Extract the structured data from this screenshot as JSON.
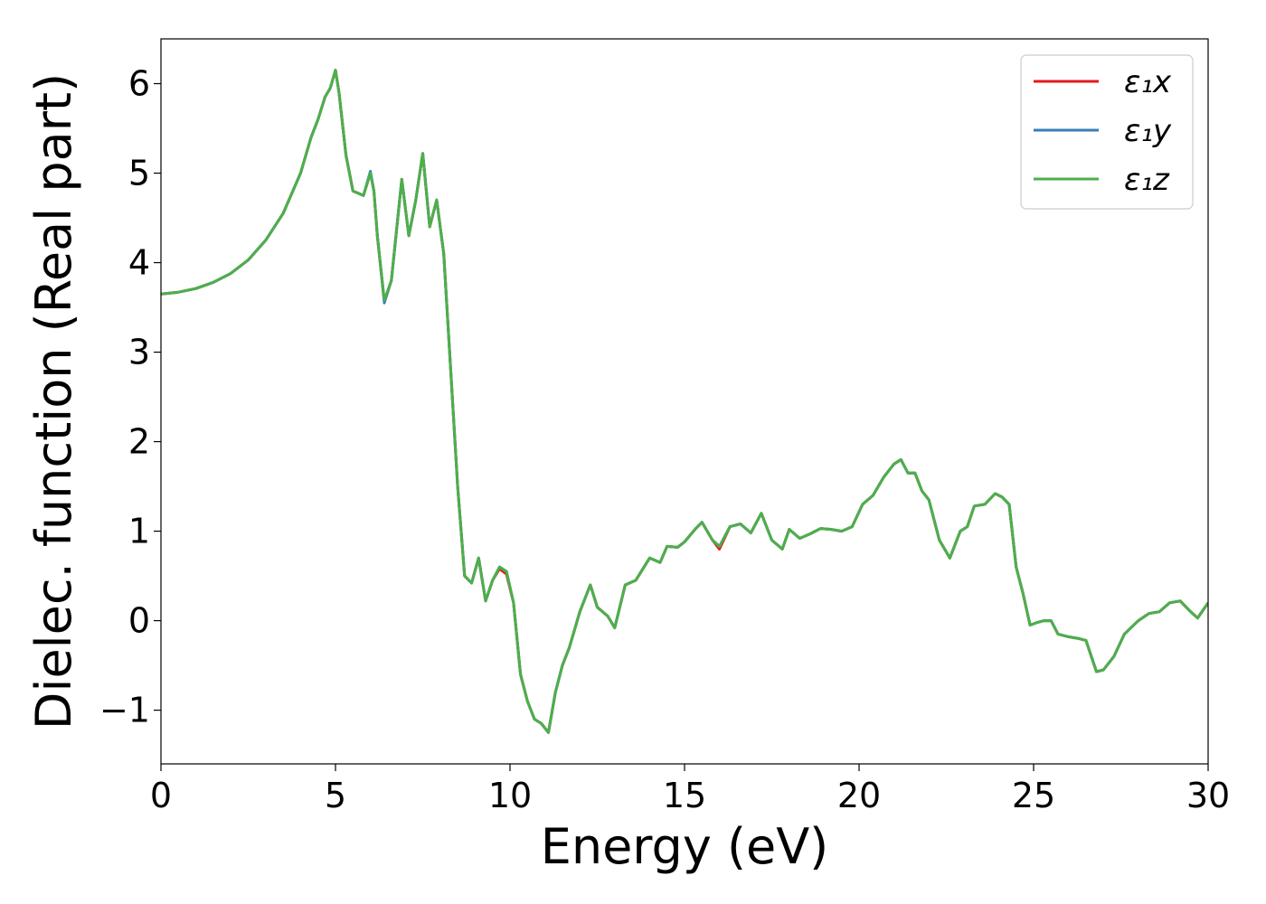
{
  "chart_data": {
    "type": "line",
    "title": "",
    "xlabel": "Energy (eV)",
    "ylabel": "Dielec. function (Real part)",
    "xlim": [
      0,
      30
    ],
    "ylim": [
      -1.6,
      6.5
    ],
    "xticks": [
      0,
      5,
      10,
      15,
      20,
      25,
      30
    ],
    "xtick_labels": [
      "0",
      "5",
      "10",
      "15",
      "20",
      "25",
      "30"
    ],
    "yticks": [
      -1,
      0,
      1,
      2,
      3,
      4,
      5,
      6
    ],
    "ytick_labels": [
      "−1",
      "0",
      "1",
      "2",
      "3",
      "4",
      "5",
      "6"
    ],
    "grid": false,
    "legend_position": "top-right",
    "x": [
      0,
      0.5,
      1,
      1.5,
      2,
      2.5,
      3,
      3.5,
      4,
      4.3,
      4.5,
      4.7,
      4.85,
      5.0,
      5.1,
      5.3,
      5.5,
      5.8,
      6.0,
      6.1,
      6.2,
      6.4,
      6.6,
      6.9,
      7.1,
      7.3,
      7.5,
      7.7,
      7.9,
      8.1,
      8.3,
      8.5,
      8.7,
      8.9,
      9.1,
      9.3,
      9.5,
      9.7,
      9.9,
      10.1,
      10.3,
      10.5,
      10.7,
      10.9,
      11.1,
      11.3,
      11.5,
      11.7,
      12.0,
      12.3,
      12.5,
      12.8,
      13.0,
      13.3,
      13.6,
      14.0,
      14.3,
      14.5,
      14.8,
      15.0,
      15.3,
      15.5,
      15.8,
      16.0,
      16.3,
      16.6,
      16.9,
      17.2,
      17.5,
      17.8,
      18.0,
      18.3,
      18.6,
      18.9,
      19.2,
      19.5,
      19.8,
      20.1,
      20.4,
      20.7,
      21.0,
      21.2,
      21.4,
      21.6,
      21.8,
      22.0,
      22.3,
      22.6,
      22.9,
      23.1,
      23.3,
      23.6,
      23.9,
      24.1,
      24.3,
      24.5,
      24.7,
      24.9,
      25.1,
      25.3,
      25.5,
      25.7,
      26.0,
      26.3,
      26.5,
      26.8,
      27.0,
      27.3,
      27.6,
      28.0,
      28.3,
      28.6,
      28.9,
      29.2,
      29.5,
      29.7,
      30.0
    ],
    "series": [
      {
        "name": "ε₁x",
        "color": "#e41a1c",
        "values": [
          3.65,
          3.67,
          3.71,
          3.78,
          3.88,
          4.03,
          4.25,
          4.55,
          5.0,
          5.4,
          5.6,
          5.85,
          5.95,
          6.15,
          5.9,
          5.2,
          4.8,
          4.75,
          5.0,
          4.8,
          4.3,
          3.57,
          3.8,
          4.93,
          4.3,
          4.7,
          5.22,
          4.4,
          4.7,
          4.1,
          2.8,
          1.5,
          0.5,
          0.42,
          0.7,
          0.22,
          0.45,
          0.58,
          0.52,
          0.2,
          -0.6,
          -0.9,
          -1.1,
          -1.15,
          -1.25,
          -0.8,
          -0.5,
          -0.3,
          0.1,
          0.4,
          0.15,
          0.05,
          -0.08,
          0.4,
          0.45,
          0.7,
          0.65,
          0.83,
          0.82,
          0.88,
          1.02,
          1.1,
          0.9,
          0.8,
          1.05,
          1.08,
          0.98,
          1.2,
          0.9,
          0.8,
          1.02,
          0.92,
          0.97,
          1.03,
          1.02,
          1.0,
          1.05,
          1.3,
          1.4,
          1.6,
          1.75,
          1.8,
          1.65,
          1.65,
          1.45,
          1.35,
          0.9,
          0.7,
          1.0,
          1.05,
          1.28,
          1.3,
          1.42,
          1.38,
          1.3,
          0.6,
          0.3,
          -0.05,
          -0.02,
          0.0,
          0.0,
          -0.15,
          -0.18,
          -0.2,
          -0.22,
          -0.57,
          -0.55,
          -0.4,
          -0.15,
          0.0,
          0.08,
          0.1,
          0.2,
          0.22,
          0.1,
          0.03,
          0.2
        ]
      },
      {
        "name": "ε₁y",
        "color": "#377eb8",
        "values": [
          3.65,
          3.67,
          3.71,
          3.78,
          3.88,
          4.03,
          4.25,
          4.55,
          5.0,
          5.4,
          5.6,
          5.85,
          5.95,
          6.15,
          5.9,
          5.2,
          4.8,
          4.75,
          5.02,
          4.8,
          4.3,
          3.55,
          3.8,
          4.93,
          4.3,
          4.7,
          5.22,
          4.4,
          4.7,
          4.1,
          2.8,
          1.5,
          0.5,
          0.42,
          0.7,
          0.22,
          0.45,
          0.6,
          0.55,
          0.2,
          -0.6,
          -0.9,
          -1.1,
          -1.15,
          -1.25,
          -0.8,
          -0.5,
          -0.3,
          0.1,
          0.4,
          0.15,
          0.05,
          -0.08,
          0.4,
          0.45,
          0.7,
          0.65,
          0.83,
          0.82,
          0.88,
          1.02,
          1.1,
          0.9,
          0.83,
          1.05,
          1.08,
          0.98,
          1.2,
          0.9,
          0.8,
          1.02,
          0.92,
          0.97,
          1.03,
          1.02,
          1.0,
          1.05,
          1.3,
          1.4,
          1.6,
          1.75,
          1.8,
          1.65,
          1.65,
          1.45,
          1.35,
          0.9,
          0.7,
          1.0,
          1.05,
          1.28,
          1.3,
          1.42,
          1.38,
          1.3,
          0.6,
          0.3,
          -0.05,
          -0.02,
          0.0,
          0.0,
          -0.15,
          -0.18,
          -0.2,
          -0.22,
          -0.57,
          -0.55,
          -0.4,
          -0.15,
          0.0,
          0.08,
          0.1,
          0.2,
          0.22,
          0.1,
          0.03,
          0.2
        ]
      },
      {
        "name": "ε₁z",
        "color": "#4daf4a",
        "values": [
          3.65,
          3.67,
          3.71,
          3.78,
          3.88,
          4.03,
          4.25,
          4.55,
          5.0,
          5.4,
          5.6,
          5.85,
          5.95,
          6.15,
          5.9,
          5.2,
          4.8,
          4.75,
          5.0,
          4.8,
          4.3,
          3.58,
          3.8,
          4.93,
          4.3,
          4.7,
          5.22,
          4.4,
          4.7,
          4.1,
          2.8,
          1.5,
          0.5,
          0.42,
          0.7,
          0.22,
          0.45,
          0.6,
          0.55,
          0.2,
          -0.6,
          -0.9,
          -1.1,
          -1.15,
          -1.25,
          -0.8,
          -0.5,
          -0.3,
          0.1,
          0.4,
          0.15,
          0.05,
          -0.08,
          0.4,
          0.45,
          0.7,
          0.65,
          0.83,
          0.82,
          0.88,
          1.02,
          1.1,
          0.9,
          0.83,
          1.05,
          1.08,
          0.98,
          1.2,
          0.9,
          0.8,
          1.02,
          0.92,
          0.97,
          1.03,
          1.02,
          1.0,
          1.05,
          1.3,
          1.4,
          1.6,
          1.75,
          1.8,
          1.65,
          1.65,
          1.45,
          1.35,
          0.9,
          0.7,
          1.0,
          1.05,
          1.28,
          1.3,
          1.42,
          1.38,
          1.3,
          0.6,
          0.3,
          -0.05,
          -0.02,
          0.0,
          0.0,
          -0.15,
          -0.18,
          -0.2,
          -0.22,
          -0.57,
          -0.55,
          -0.4,
          -0.15,
          0.0,
          0.08,
          0.1,
          0.2,
          0.22,
          0.1,
          0.03,
          0.2
        ]
      }
    ]
  }
}
